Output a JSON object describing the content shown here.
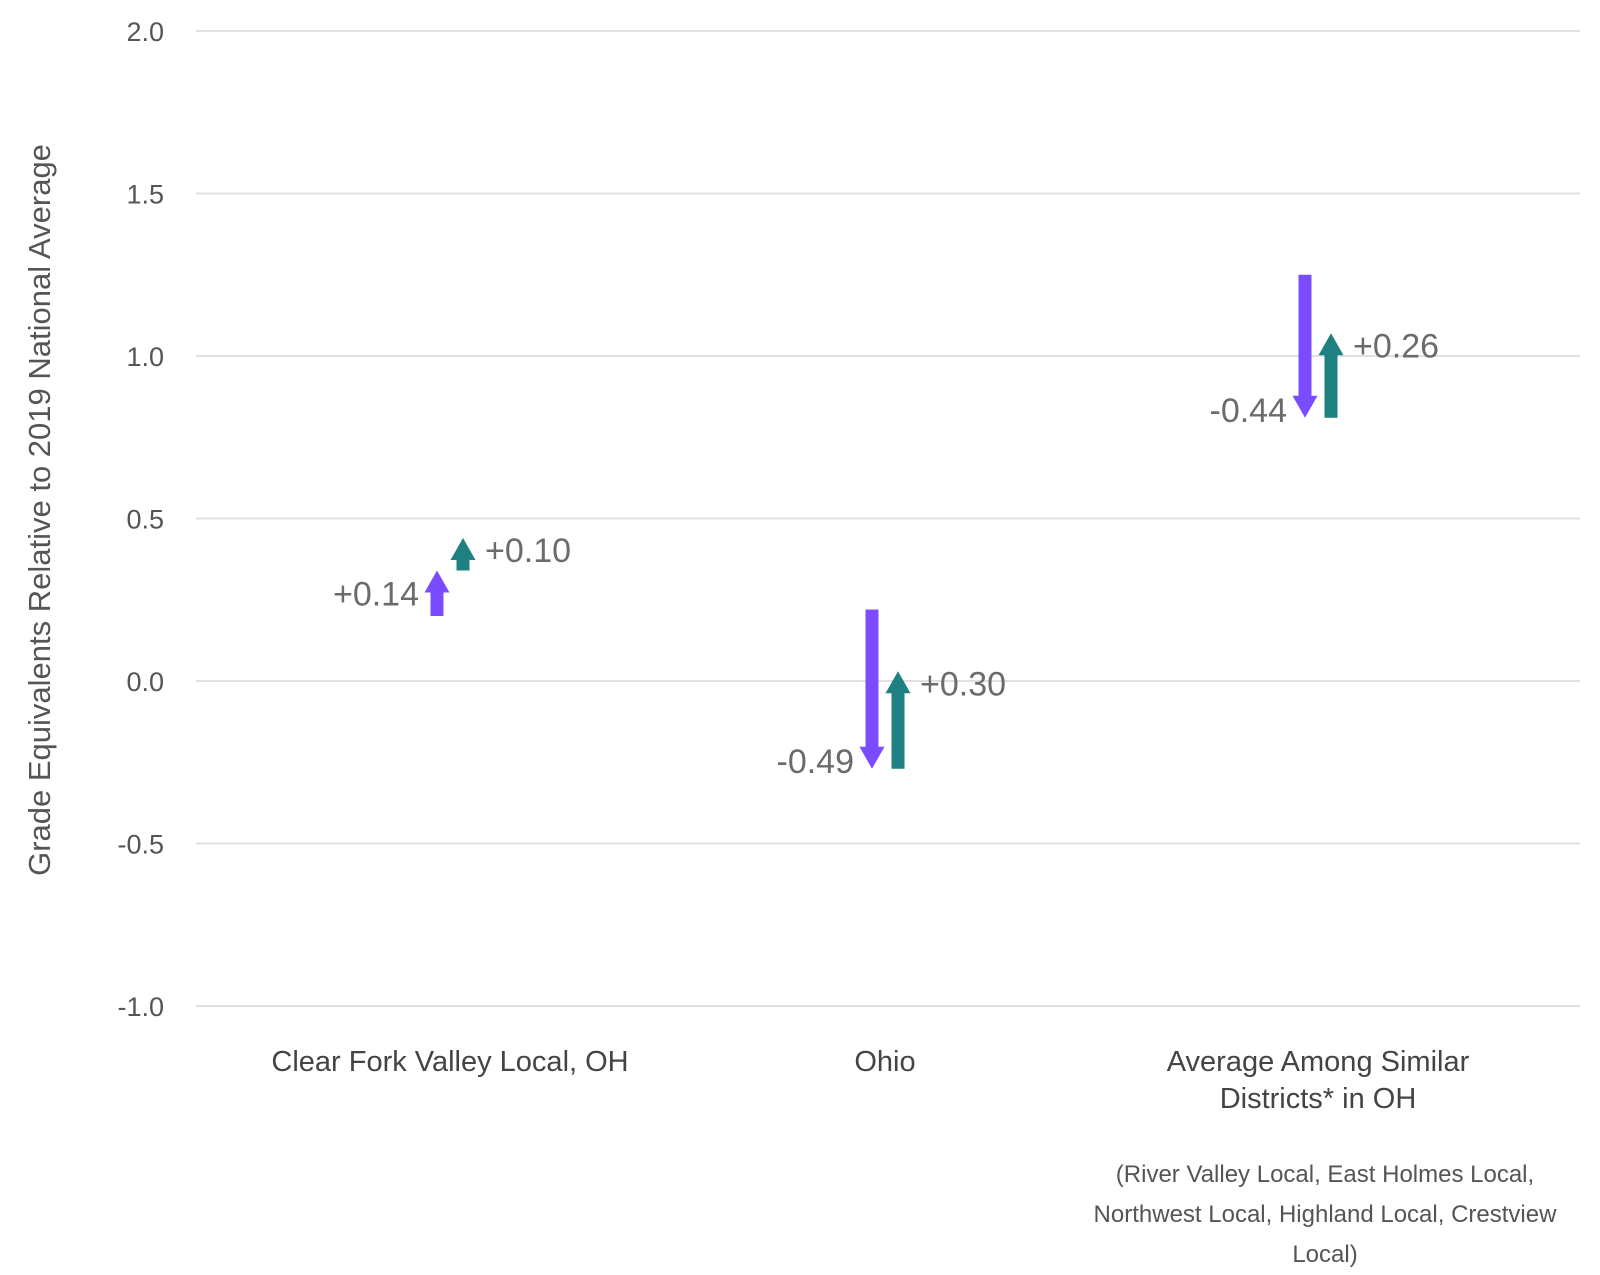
{
  "chart_data": {
    "type": "arrow",
    "ylabel": "Grade Equivalents Relative to 2019 National Average",
    "ylim": [
      -1.0,
      2.0
    ],
    "yticks": [
      2.0,
      1.5,
      1.0,
      0.5,
      0.0,
      -0.5,
      -1.0
    ],
    "ytick_labels": [
      "2.0",
      "1.5",
      "1.0",
      "0.5",
      "0.0",
      "-0.5",
      "-1.0"
    ],
    "grid": true,
    "categories": [
      {
        "lines": [
          "Clear Fork Valley Local, OH"
        ]
      },
      {
        "lines": [
          "Ohio"
        ]
      },
      {
        "lines": [
          "Average Among Similar",
          "Districts* in OH"
        ]
      }
    ],
    "note_lines": [
      "(River Valley Local, East Holmes Local,",
      "Northwest Local, Highland Local, Crestview",
      "Local)"
    ],
    "series": [
      {
        "color": "#7b4cff",
        "arrows": [
          {
            "start": 0.2,
            "end": 0.34,
            "label": "+0.14"
          },
          {
            "start": 0.22,
            "end": -0.27,
            "label": "-0.49"
          },
          {
            "start": 1.25,
            "end": 0.81,
            "label": "-0.44"
          }
        ]
      },
      {
        "color": "#1e8080",
        "arrows": [
          {
            "start": 0.34,
            "end": 0.44,
            "label": "+0.10"
          },
          {
            "start": -0.27,
            "end": 0.03,
            "label": "+0.30"
          },
          {
            "start": 0.81,
            "end": 1.07,
            "label": "+0.26"
          }
        ]
      }
    ]
  }
}
